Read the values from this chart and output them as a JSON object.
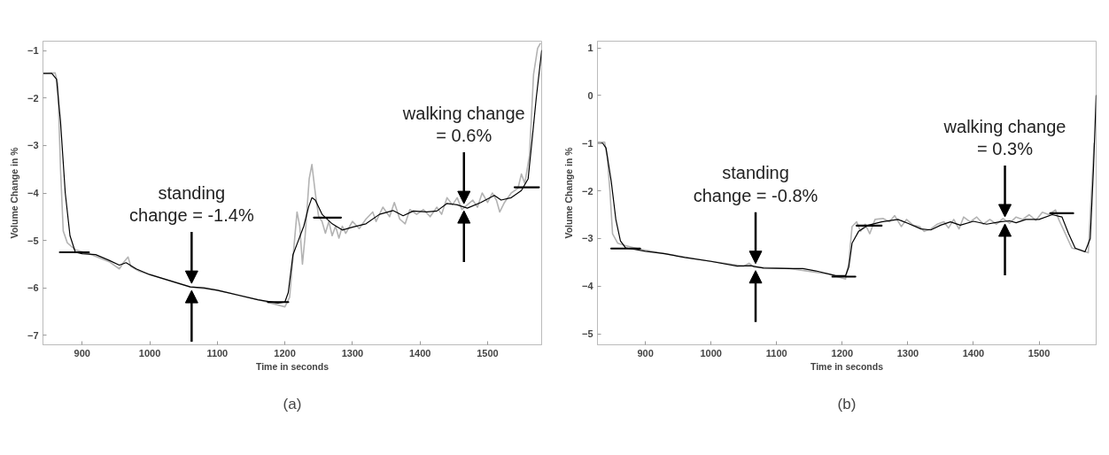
{
  "chart_data": [
    {
      "type": "line",
      "title": "(a)",
      "xlabel": "Time in seconds",
      "ylabel": "Volume Change in %",
      "xlim": [
        842,
        1580
      ],
      "ylim": [
        -7.2,
        -0.8
      ],
      "xticks": [
        900,
        1000,
        1100,
        1200,
        1300,
        1400,
        1500
      ],
      "yticks": [
        -1,
        -2,
        -3,
        -4,
        -5,
        -6,
        -7
      ],
      "grid": false,
      "annotations": [
        {
          "text": "standing\nchange = -1.4%",
          "x": 1062,
          "y": -5.98
        },
        {
          "text": "walking change\n= 0.6%",
          "x": 1465,
          "y": -4.3
        }
      ],
      "series": [
        {
          "color": "#b3b3b3",
          "x": [
            842,
            860,
            864,
            868,
            872,
            878,
            890,
            910,
            940,
            955,
            962,
            968,
            972,
            985,
            1000,
            1060,
            1100,
            1160,
            1200,
            1207,
            1213,
            1218,
            1222,
            1226,
            1230,
            1236,
            1240,
            1245,
            1250,
            1255,
            1260,
            1265,
            1270,
            1275,
            1280,
            1285,
            1290,
            1300,
            1310,
            1320,
            1330,
            1335,
            1345,
            1355,
            1362,
            1370,
            1378,
            1385,
            1395,
            1405,
            1415,
            1425,
            1432,
            1440,
            1448,
            1455,
            1462,
            1470,
            1478,
            1485,
            1492,
            1500,
            1507,
            1513,
            1518,
            1525,
            1535,
            1545,
            1550,
            1555,
            1562,
            1568,
            1574,
            1578
          ],
          "values": [
            -1.48,
            -1.47,
            -1.7,
            -3.5,
            -4.8,
            -5.05,
            -5.2,
            -5.28,
            -5.45,
            -5.6,
            -5.45,
            -5.35,
            -5.55,
            -5.65,
            -5.72,
            -5.98,
            -6.05,
            -6.25,
            -6.4,
            -6.2,
            -5.2,
            -4.4,
            -4.7,
            -5.5,
            -4.9,
            -3.7,
            -3.4,
            -4.0,
            -4.5,
            -4.6,
            -4.85,
            -4.6,
            -4.9,
            -4.7,
            -4.95,
            -4.7,
            -4.85,
            -4.6,
            -4.75,
            -4.55,
            -4.4,
            -4.6,
            -4.3,
            -4.5,
            -4.2,
            -4.55,
            -4.65,
            -4.35,
            -4.45,
            -4.35,
            -4.5,
            -4.3,
            -4.45,
            -4.1,
            -4.25,
            -4.1,
            -4.35,
            -4.25,
            -4.15,
            -4.3,
            -4.0,
            -4.2,
            -4.0,
            -4.15,
            -4.4,
            -4.2,
            -4.0,
            -3.9,
            -3.6,
            -3.8,
            -3.2,
            -1.5,
            -0.95,
            -0.85
          ]
        },
        {
          "color": "#000000",
          "x": [
            842,
            855,
            862,
            868,
            875,
            882,
            890,
            900,
            920,
            940,
            955,
            965,
            980,
            1000,
            1030,
            1060,
            1080,
            1100,
            1130,
            1160,
            1190,
            1200,
            1205,
            1212,
            1220,
            1228,
            1235,
            1240,
            1245,
            1255,
            1270,
            1285,
            1300,
            1320,
            1340,
            1360,
            1375,
            1390,
            1410,
            1425,
            1440,
            1455,
            1470,
            1490,
            1510,
            1520,
            1535,
            1550,
            1560,
            1565,
            1572,
            1580
          ],
          "values": [
            -1.48,
            -1.48,
            -1.6,
            -2.5,
            -4.0,
            -4.9,
            -5.25,
            -5.28,
            -5.3,
            -5.42,
            -5.52,
            -5.47,
            -5.6,
            -5.72,
            -5.85,
            -5.98,
            -6.0,
            -6.05,
            -6.15,
            -6.25,
            -6.32,
            -6.3,
            -6.1,
            -5.3,
            -5.0,
            -4.7,
            -4.3,
            -4.1,
            -4.15,
            -4.45,
            -4.65,
            -4.78,
            -4.72,
            -4.65,
            -4.45,
            -4.37,
            -4.48,
            -4.38,
            -4.4,
            -4.38,
            -4.22,
            -4.25,
            -4.32,
            -4.2,
            -4.05,
            -4.15,
            -4.1,
            -3.95,
            -3.7,
            -3.0,
            -2.0,
            -1.0
          ]
        },
        {
          "color": "#000000",
          "x": [
            867,
            910
          ],
          "values": [
            -5.25,
            -5.25
          ]
        },
        {
          "color": "#000000",
          "x": [
            1175,
            1205
          ],
          "values": [
            -6.3,
            -6.3
          ]
        },
        {
          "color": "#000000",
          "x": [
            1243,
            1283
          ],
          "values": [
            -4.52,
            -4.52
          ]
        },
        {
          "color": "#000000",
          "x": [
            1540,
            1576
          ],
          "values": [
            -3.88,
            -3.88
          ]
        }
      ]
    },
    {
      "type": "line",
      "title": "(b)",
      "xlabel": "Time in seconds",
      "ylabel": "Volume Change in %",
      "xlim": [
        827,
        1587
      ],
      "ylim": [
        -5.23,
        1.14
      ],
      "xticks": [
        900,
        1000,
        1100,
        1200,
        1300,
        1400,
        1500
      ],
      "yticks": [
        1,
        0,
        -1,
        -2,
        -3,
        -4,
        -5
      ],
      "grid": false,
      "annotations": [
        {
          "text": "standing\nchange = -0.8%",
          "x": 1068,
          "y": -3.6
        },
        {
          "text": "walking change\n= 0.3%",
          "x": 1448,
          "y": -2.62
        }
      ],
      "series": [
        {
          "color": "#b3b3b3",
          "x": [
            827,
            838,
            842,
            846,
            850,
            858,
            870,
            890,
            930,
            1000,
            1050,
            1058,
            1066,
            1120,
            1180,
            1205,
            1210,
            1215,
            1222,
            1228,
            1235,
            1242,
            1250,
            1262,
            1272,
            1280,
            1290,
            1298,
            1308,
            1318,
            1325,
            1335,
            1345,
            1355,
            1362,
            1370,
            1378,
            1385,
            1395,
            1405,
            1415,
            1425,
            1435,
            1445,
            1455,
            1465,
            1475,
            1485,
            1495,
            1505,
            1515,
            1525,
            1530,
            1540,
            1550,
            1565,
            1575,
            1580,
            1584
          ],
          "values": [
            -0.98,
            -0.98,
            -1.3,
            -2.0,
            -2.9,
            -3.1,
            -3.15,
            -3.22,
            -3.32,
            -3.48,
            -3.58,
            -3.52,
            -3.6,
            -3.63,
            -3.75,
            -3.85,
            -3.5,
            -2.75,
            -2.65,
            -2.85,
            -2.7,
            -2.9,
            -2.6,
            -2.58,
            -2.65,
            -2.52,
            -2.75,
            -2.6,
            -2.72,
            -2.75,
            -2.85,
            -2.8,
            -2.7,
            -2.65,
            -2.78,
            -2.6,
            -2.8,
            -2.55,
            -2.65,
            -2.55,
            -2.7,
            -2.6,
            -2.7,
            -2.58,
            -2.68,
            -2.55,
            -2.6,
            -2.5,
            -2.62,
            -2.45,
            -2.5,
            -2.4,
            -2.6,
            -2.9,
            -3.2,
            -3.25,
            -3.3,
            -2.0,
            -1.0
          ]
        },
        {
          "color": "#000000",
          "x": [
            827,
            835,
            840,
            848,
            855,
            862,
            870,
            880,
            900,
            930,
            960,
            1000,
            1040,
            1060,
            1080,
            1120,
            1140,
            1160,
            1190,
            1205,
            1210,
            1215,
            1225,
            1240,
            1260,
            1285,
            1300,
            1320,
            1335,
            1350,
            1365,
            1380,
            1400,
            1420,
            1440,
            1455,
            1465,
            1480,
            1500,
            1520,
            1535,
            1545,
            1555,
            1570,
            1578,
            1583,
            1587
          ],
          "values": [
            -1.0,
            -1.0,
            -1.1,
            -1.8,
            -2.6,
            -3.05,
            -3.2,
            -3.22,
            -3.27,
            -3.32,
            -3.4,
            -3.48,
            -3.58,
            -3.57,
            -3.62,
            -3.63,
            -3.63,
            -3.68,
            -3.78,
            -3.78,
            -3.6,
            -3.1,
            -2.85,
            -2.72,
            -2.65,
            -2.6,
            -2.68,
            -2.8,
            -2.82,
            -2.72,
            -2.65,
            -2.72,
            -2.64,
            -2.7,
            -2.65,
            -2.63,
            -2.67,
            -2.6,
            -2.6,
            -2.5,
            -2.55,
            -2.9,
            -3.2,
            -3.28,
            -3.0,
            -1.5,
            0.0
          ]
        },
        {
          "color": "#000000",
          "x": [
            848,
            892
          ],
          "values": [
            -3.21,
            -3.21
          ]
        },
        {
          "color": "#000000",
          "x": [
            1185,
            1220
          ],
          "values": [
            -3.8,
            -3.8
          ]
        },
        {
          "color": "#000000",
          "x": [
            1222,
            1260
          ],
          "values": [
            -2.73,
            -2.73
          ]
        },
        {
          "color": "#000000",
          "x": [
            1517,
            1552
          ],
          "values": [
            -2.47,
            -2.47
          ]
        }
      ]
    }
  ]
}
